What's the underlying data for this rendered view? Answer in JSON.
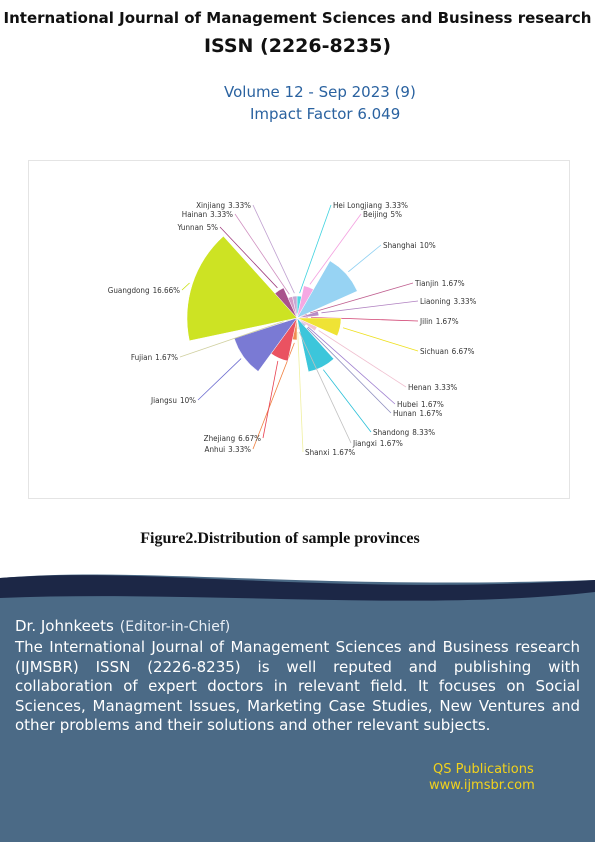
{
  "header": {
    "title": "International Journal of Management Sciences and Business research",
    "issn": "ISSN (2226-8235)",
    "volume": "Volume 12 - Sep 2023 (9)",
    "impact_factor": "Impact Factor 6.049"
  },
  "chart_data": {
    "type": "rose",
    "categories": [
      "Hei Longjiang",
      "Beijing",
      "Shanghai",
      "Tianjin",
      "Liaoning",
      "Jilin",
      "Sichuan",
      "Henan",
      "Hubei",
      "Hunan",
      "Shandong",
      "Jiangxi",
      "Shanxi",
      "Anhui",
      "Zhejiang",
      "Jiangsu",
      "Fujian",
      "Guangdong",
      "Yunnan",
      "Hainan",
      "Xinjiang"
    ],
    "values": [
      3.33,
      5,
      10,
      1.67,
      3.33,
      1.67,
      6.67,
      3.33,
      1.67,
      1.67,
      8.33,
      1.67,
      1.67,
      3.33,
      6.67,
      10,
      1.67,
      16.66,
      5,
      3.33,
      3.33
    ],
    "value_labels": [
      "3.33%",
      "5%",
      "10%",
      "1.67%",
      "3.33%",
      "1.67%",
      "6.67%",
      "3.33%",
      "1.67%",
      "1.67%",
      "8.33%",
      "1.67%",
      "1.67%",
      "3.33%",
      "6.67%",
      "10%",
      "1.67%",
      "16.66%",
      "5%",
      "3.33%",
      "3.33%"
    ],
    "colors": [
      "#3fd3e0",
      "#f4a0e0",
      "#8ccff2",
      "#c06090",
      "#b080c0",
      "#d04070",
      "#eee020",
      "#f0c0d0",
      "#a080d0",
      "#9090c0",
      "#28c0d8",
      "#c0c0c0",
      "#f0f0a0",
      "#f08040",
      "#e84050",
      "#6c6cd0",
      "#d0d0a0",
      "#c8e00c",
      "#a04080",
      "#d090c0",
      "#c0a0d0"
    ],
    "caption": "Figure2.Distribution of sample provinces"
  },
  "editor": {
    "name": "Dr. Johnkeets",
    "role": "(Editor-in-Chief)"
  },
  "description": "The International Journal of Management Sciences and Business research (IJMSBR) ISSN (2226-8235) is well reputed and publishing with collaboration of expert doctors in relevant field. It focuses on Social Sciences, Managment Issues, Marketing Case Studies, New Ventures and other problems and their solutions and other relevant subjects.",
  "publisher": {
    "name": "QS Publications",
    "url": "www.ijmsbr.com"
  }
}
